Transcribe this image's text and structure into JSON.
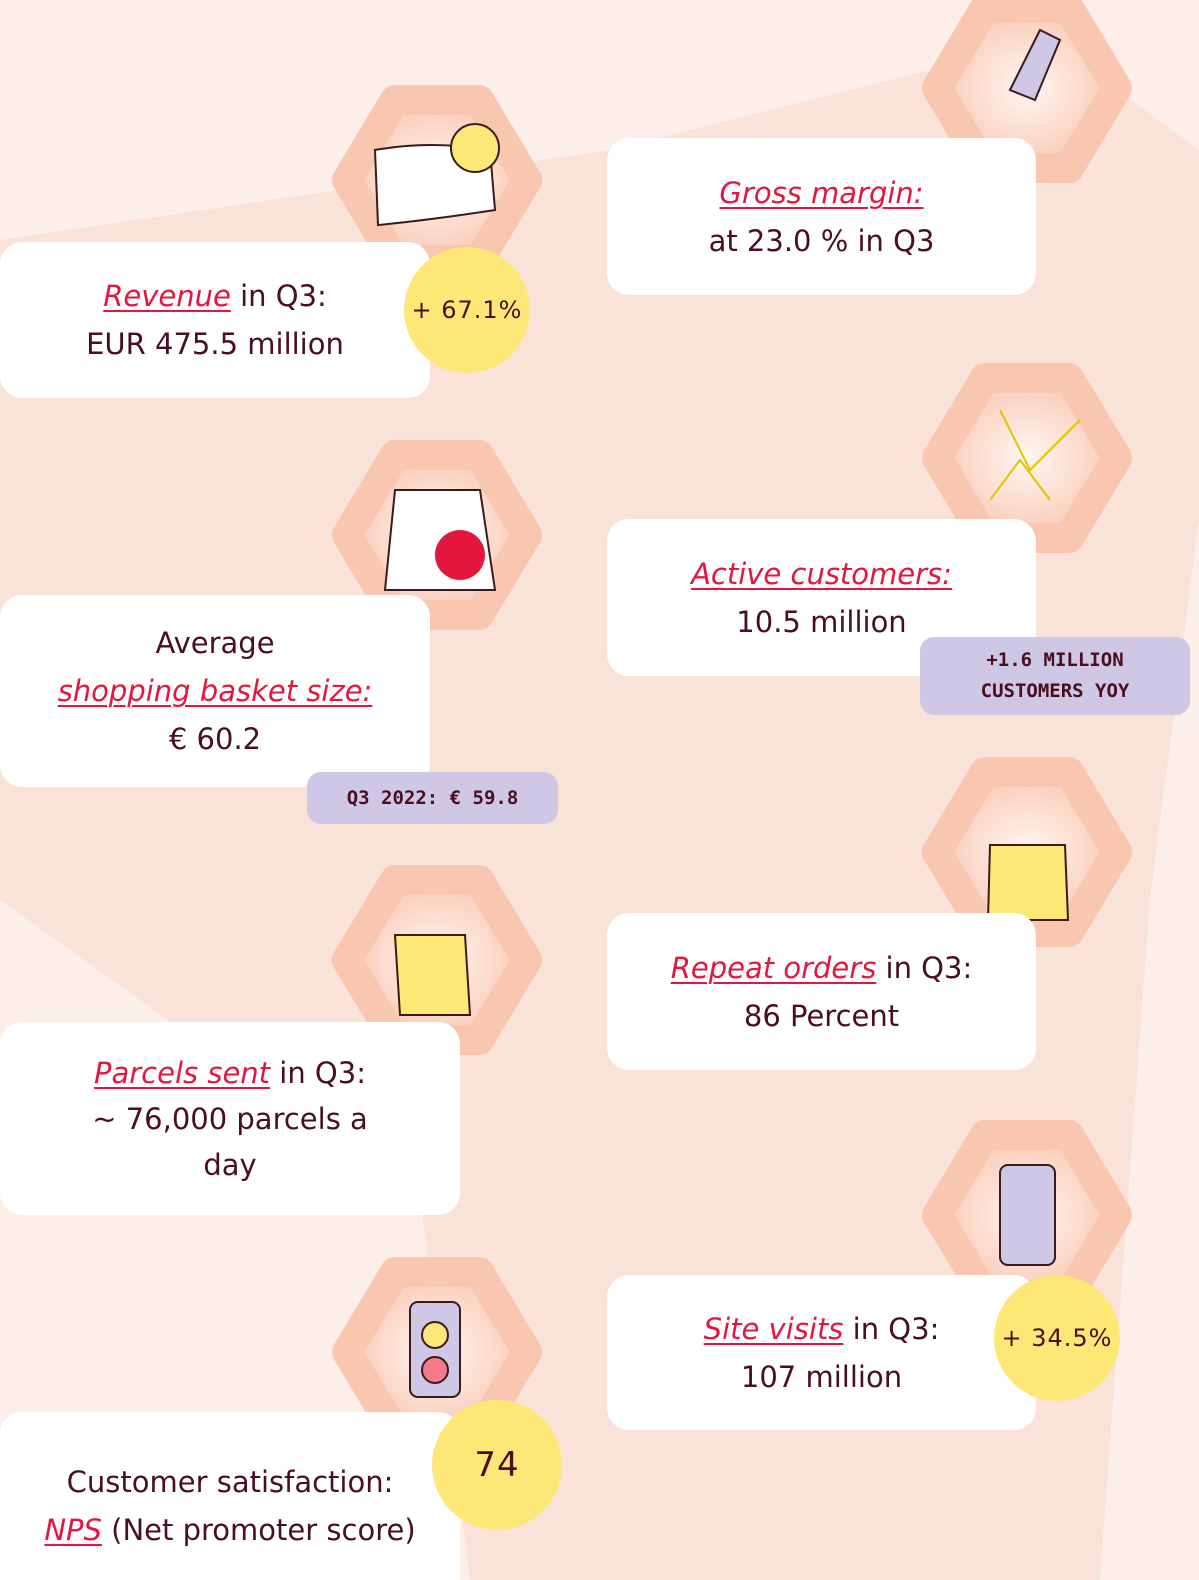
{
  "cards": [
    {
      "link": "Revenue",
      "rest": "in Q3:",
      "value": "EUR 475.5 million",
      "badge": "+ 67.1%"
    },
    {
      "link": "Gross margin:",
      "value": "at 23.0 % in Q3"
    },
    {
      "pre": "Average",
      "link": "shopping basket size:",
      "value": "€ 60.2",
      "tag": "Q3 2022: € 59.8"
    },
    {
      "link": "Active customers:",
      "value": "10.5 million",
      "tag": "+1.6 MILLION CUSTOMERS YOY"
    },
    {
      "link": "Parcels sent",
      "rest": "in Q3:",
      "value": "~ 76,000 parcels a day"
    },
    {
      "link": "Repeat orders",
      "rest": "in Q3:",
      "value": "86 Percent"
    },
    {
      "pre": "Customer satisfaction:",
      "link": "NPS",
      "rest": "(Net promoter score)",
      "badge": "74"
    },
    {
      "link": "Site visits",
      "rest": "in Q3:",
      "value": "107 million",
      "badge": "+ 34.5%"
    }
  ]
}
